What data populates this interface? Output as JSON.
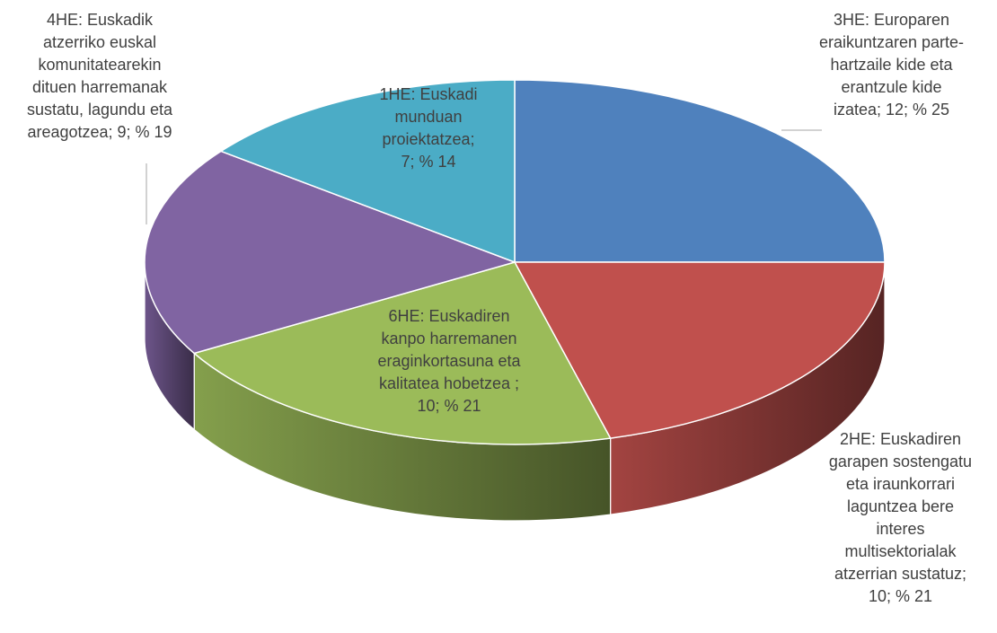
{
  "chart_data": {
    "type": "pie",
    "style": "3d",
    "title": "",
    "slices": [
      {
        "name": "3HE: Europaren eraikuntzaren parte-hartzaile kide eta erantzule kide izatea",
        "value": 12,
        "percent": 25,
        "color": "#4f81bd",
        "label": "3HE: Europaren\neraikuntzaren parte-\nhartzaile kide eta\nerantzule kide\nizatea; 12; % 25"
      },
      {
        "name": "2HE: Euskadiren garapen sostengatu eta iraunkorrari laguntzea bere interes multisektorialak atzerrian sustatuz",
        "value": 10,
        "percent": 21,
        "color": "#c0504d",
        "label": "2HE: Euskadiren\ngarapen sostengatu\neta iraunkorrari\nlaguntzea bere\ninteres\nmultisektorialak\natzerrian sustatuz;\n10; % 21"
      },
      {
        "name": "6HE: Euskadiren kanpo harremanen eraginkortasuna eta kalitatea hobetzea",
        "value": 10,
        "percent": 21,
        "color": "#9bbb59",
        "label": "6HE: Euskadiren\nkanpo harremanen\neraginkortasuna eta\nkalitatea hobetzea ;\n10; % 21"
      },
      {
        "name": "4HE: Euskadik atzerriko euskal komunitatearekin dituen harremanak sustatu, lagundu eta areagotzea",
        "value": 9,
        "percent": 19,
        "color": "#8064a2",
        "label": "4HE: Euskadik\natzerriko euskal\nkomunitatearekin\ndituen harremanak\nsustatu, lagundu eta\nareagotzea; 9; % 19"
      },
      {
        "name": "1HE: Euskadi munduan proiektatzea",
        "value": 7,
        "percent": 14,
        "color": "#4bacc6",
        "label": "1HE: Euskadi\nmunduan\nproiektatzea;\n7; % 14"
      }
    ],
    "start_angle_deg": 0,
    "direction": "clockwise",
    "legend": "none",
    "data_labels": "category; value; percent"
  }
}
